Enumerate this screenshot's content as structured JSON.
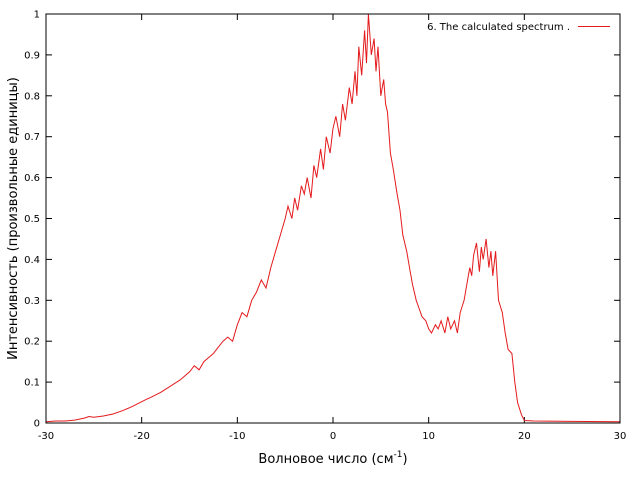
{
  "chart_data": {
    "type": "line",
    "title": "",
    "xlabel": "Волновое число (см",
    "xlabel_sup": "-1",
    "xlabel_tail": ")",
    "ylabel": "Интенсивность (произвольные единицы)",
    "xlim": [
      -30,
      30
    ],
    "ylim": [
      0,
      1
    ],
    "x_ticks": [
      -30,
      -20,
      -10,
      0,
      10,
      20,
      30
    ],
    "y_ticks": [
      0,
      0.1,
      0.2,
      0.3,
      0.4,
      0.5,
      0.6,
      0.7,
      0.8,
      0.9,
      1
    ],
    "x_tick_labels": [
      "-30",
      "-20",
      "-10",
      "0",
      "10",
      "20",
      "30"
    ],
    "y_tick_labels": [
      "0",
      "0.1",
      "0.2",
      "0.3",
      "0.4",
      "0.5",
      "0.6",
      "0.7",
      "0.8",
      "0.9",
      "1"
    ],
    "legend_position": "top-right",
    "grid": false,
    "series": [
      {
        "name": "6. The calculated spectrum .",
        "color": "#e41a1c",
        "x": [
          -30,
          -29,
          -28,
          -27,
          -26,
          -25.5,
          -25,
          -24,
          -23,
          -22,
          -21,
          -20,
          -19.5,
          -19,
          -18,
          -17,
          -16,
          -15,
          -14.5,
          -14,
          -13.5,
          -13,
          -12.5,
          -12,
          -11.5,
          -11,
          -10.5,
          -10,
          -9.5,
          -9,
          -8.5,
          -8,
          -7.5,
          -7,
          -6.5,
          -6,
          -5.5,
          -5,
          -4.7,
          -4.3,
          -4,
          -3.7,
          -3.3,
          -3,
          -2.7,
          -2.3,
          -2,
          -1.7,
          -1.3,
          -1,
          -0.7,
          -0.3,
          0,
          0.3,
          0.7,
          1,
          1.3,
          1.7,
          2,
          2.3,
          2.5,
          2.7,
          3,
          3.3,
          3.5,
          3.7,
          4,
          4.3,
          4.5,
          4.7,
          5,
          5.3,
          5.5,
          5.7,
          6,
          6.3,
          6.7,
          7,
          7.3,
          7.7,
          8,
          8.3,
          8.7,
          9,
          9.3,
          9.7,
          10,
          10.3,
          10.7,
          11,
          11.3,
          11.7,
          12,
          12.3,
          12.7,
          13,
          13.3,
          13.7,
          14,
          14.3,
          14.5,
          14.7,
          15,
          15.3,
          15.5,
          15.7,
          16,
          16.3,
          16.5,
          16.7,
          17,
          17.3,
          17.7,
          18,
          18.3,
          18.7,
          19,
          19.3,
          19.7,
          20,
          21,
          25,
          30
        ],
        "y": [
          0.003,
          0.005,
          0.005,
          0.007,
          0.012,
          0.016,
          0.014,
          0.017,
          0.022,
          0.03,
          0.04,
          0.052,
          0.058,
          0.063,
          0.075,
          0.09,
          0.105,
          0.125,
          0.14,
          0.13,
          0.15,
          0.16,
          0.17,
          0.185,
          0.2,
          0.21,
          0.2,
          0.24,
          0.27,
          0.26,
          0.3,
          0.32,
          0.35,
          0.33,
          0.38,
          0.42,
          0.46,
          0.5,
          0.53,
          0.5,
          0.55,
          0.52,
          0.58,
          0.56,
          0.6,
          0.55,
          0.63,
          0.6,
          0.67,
          0.62,
          0.7,
          0.66,
          0.72,
          0.75,
          0.7,
          0.78,
          0.74,
          0.82,
          0.78,
          0.86,
          0.8,
          0.92,
          0.85,
          0.96,
          0.88,
          1.0,
          0.9,
          0.94,
          0.86,
          0.92,
          0.8,
          0.84,
          0.78,
          0.76,
          0.66,
          0.62,
          0.56,
          0.52,
          0.46,
          0.42,
          0.38,
          0.34,
          0.3,
          0.28,
          0.26,
          0.25,
          0.23,
          0.22,
          0.24,
          0.23,
          0.25,
          0.22,
          0.26,
          0.23,
          0.25,
          0.22,
          0.27,
          0.3,
          0.34,
          0.38,
          0.36,
          0.41,
          0.44,
          0.37,
          0.43,
          0.4,
          0.45,
          0.38,
          0.42,
          0.36,
          0.42,
          0.3,
          0.27,
          0.22,
          0.18,
          0.17,
          0.1,
          0.05,
          0.02,
          0.006,
          0.005,
          0.004,
          0.003
        ]
      }
    ]
  }
}
